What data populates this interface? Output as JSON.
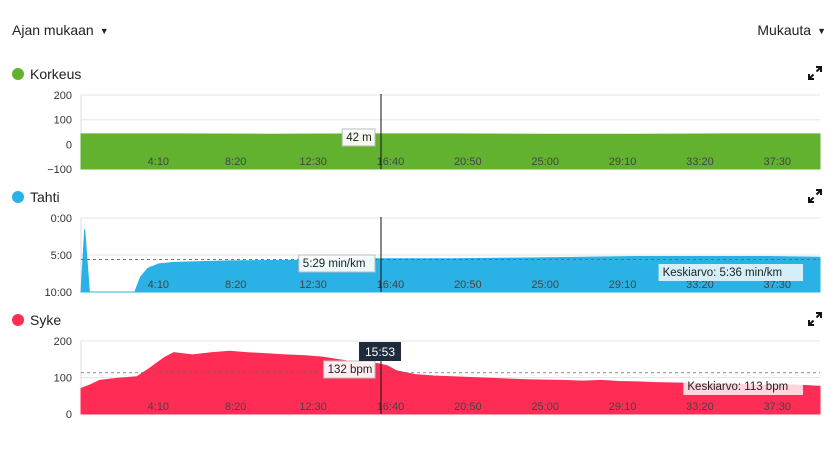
{
  "toolbar": {
    "view_label": "Ajan mukaan",
    "customize_label": "Mukauta"
  },
  "x_ticks": [
    "4:10",
    "8:20",
    "12:30",
    "16:40",
    "20:50",
    "25:00",
    "29:10",
    "33:20",
    "37:30"
  ],
  "cursor_time": "15:53",
  "colors": {
    "altitude": "#62b22f",
    "pace": "#2ab1e6",
    "heart_rate": "#ff2d55"
  },
  "panels": {
    "altitude": {
      "title": "Korkeus",
      "y_ticks": [
        "200",
        "100",
        "0",
        "−100"
      ],
      "tooltip": "42 m",
      "chart_data": {
        "type": "area",
        "x_range_minutes": [
          0,
          39.8
        ],
        "ylim": [
          -100,
          200
        ],
        "x": [
          0,
          5,
          10,
          15,
          20,
          25,
          30,
          35,
          39.8
        ],
        "y": [
          42,
          42,
          41,
          42,
          42,
          41,
          41,
          42,
          42
        ]
      }
    },
    "pace": {
      "title": "Tahti",
      "y_ticks": [
        "0:00",
        "5:00",
        "10:00"
      ],
      "tooltip": "5:29 min/km",
      "average_label": "Keskiarvo: 5:36 min/km",
      "chart_data": {
        "type": "area",
        "inverted": true,
        "ylim_min_per_km": [
          0,
          10
        ],
        "average": 5.6,
        "x": [
          0,
          0.2,
          0.45,
          0.7,
          2.9,
          3.2,
          3.6,
          4.2,
          5,
          8,
          12,
          16,
          20,
          24,
          27,
          30,
          34,
          37,
          39.8
        ],
        "y": [
          10,
          1.5,
          10,
          10,
          10,
          8.0,
          6.8,
          6.2,
          6.0,
          5.8,
          5.7,
          5.5,
          5.5,
          5.4,
          5.3,
          5.2,
          5.2,
          5.2,
          5.3
        ]
      }
    },
    "heart_rate": {
      "title": "Syke",
      "y_ticks": [
        "200",
        "100",
        "0"
      ],
      "tooltip": "132 bpm",
      "average_label": "Keskiarvo: 113 bpm",
      "chart_data": {
        "type": "area",
        "ylim": [
          0,
          200
        ],
        "average": 113,
        "x": [
          0,
          0.5,
          1,
          2,
          3,
          3.6,
          4.5,
          5,
          6,
          7,
          8,
          9,
          10,
          11,
          12,
          13,
          14,
          15,
          16,
          16.5,
          17,
          18,
          19,
          20,
          21,
          22,
          23,
          24,
          25,
          26,
          27,
          28,
          29,
          30,
          31,
          32,
          33,
          34,
          35,
          36,
          37,
          38,
          39,
          39.8
        ],
        "y": [
          70,
          80,
          92,
          98,
          102,
          122,
          155,
          168,
          162,
          168,
          172,
          168,
          165,
          162,
          160,
          156,
          148,
          140,
          138,
          132,
          118,
          108,
          104,
          102,
          100,
          98,
          96,
          94,
          93,
          92,
          90,
          92,
          89,
          88,
          86,
          85,
          84,
          82,
          82,
          80,
          78,
          80,
          78,
          76
        ]
      }
    }
  }
}
